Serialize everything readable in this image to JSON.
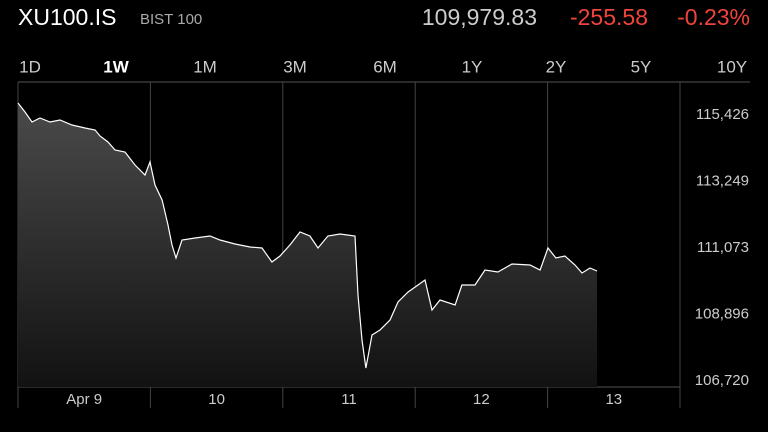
{
  "header": {
    "symbol": "XU100.IS",
    "name": "BIST 100",
    "price": "109,979.83",
    "change": "-255.58",
    "change_percent": "-0.23%"
  },
  "tabs": {
    "items": [
      "1D",
      "1W",
      "1M",
      "3M",
      "6M",
      "1Y",
      "2Y",
      "5Y",
      "10Y"
    ],
    "selected": 1
  },
  "chart_data": {
    "type": "line",
    "color": "#ffffff",
    "x": [
      8.5,
      8.553,
      8.606,
      8.666,
      8.742,
      8.817,
      8.908,
      9.006,
      9.082,
      9.119,
      9.18,
      9.233,
      9.308,
      9.384,
      9.459,
      9.497,
      9.535,
      9.588,
      9.633,
      9.663,
      9.693,
      9.739,
      9.837,
      9.95,
      10.026,
      10.139,
      10.252,
      10.343,
      10.418,
      10.479,
      10.554,
      10.63,
      10.705,
      10.766,
      10.841,
      10.932,
      11.045,
      11.068,
      11.098,
      11.128,
      11.174,
      11.234,
      11.31,
      11.37,
      11.446,
      11.521,
      11.574,
      11.627,
      11.687,
      11.801,
      11.853,
      11.952,
      12.027,
      12.125,
      12.231,
      12.367,
      12.443,
      12.503,
      12.563,
      12.631,
      12.707,
      12.76,
      12.82,
      12.873
    ],
    "values": [
      115819,
      115524,
      115197,
      115328,
      115197,
      115262,
      115099,
      115001,
      114935,
      114739,
      114542,
      114281,
      114215,
      113790,
      113462,
      113888,
      113135,
      112644,
      111826,
      111171,
      110746,
      111335,
      111400,
      111466,
      111335,
      111204,
      111106,
      111073,
      110615,
      110811,
      111171,
      111597,
      111466,
      111073,
      111466,
      111531,
      111466,
      109535,
      108062,
      107145,
      108226,
      108389,
      108717,
      109306,
      109633,
      109862,
      110026,
      109044,
      109371,
      109207,
      109862,
      109862,
      110353,
      110288,
      110549,
      110517,
      110353,
      111073,
      110746,
      110811,
      110517,
      110255,
      110418,
      110320
    ],
    "xlim": [
      8.5,
      13.5
    ],
    "xticks": [
      {
        "value": 9,
        "label": "Apr 9"
      },
      10,
      11,
      12,
      13
    ],
    "ylim": [
      106524,
      116507
    ],
    "yticks": [
      {
        "value": 106720,
        "label": "106,720"
      },
      {
        "value": 108896,
        "label": "108,896"
      },
      {
        "value": 111073,
        "label": "111,073"
      },
      {
        "value": 113249,
        "label": "113,249"
      },
      {
        "value": 115426,
        "label": "115,426"
      }
    ]
  }
}
